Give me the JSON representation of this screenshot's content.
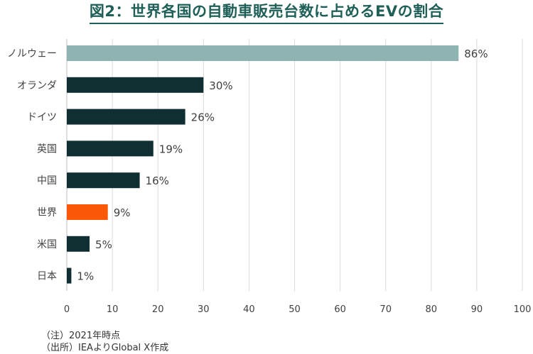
{
  "title": "図2：世界各国の自動車販売台数に占めるEVの割合",
  "notes": {
    "line1": "（注）2021年時点",
    "line2": "（出所）IEAよりGlobal X作成"
  },
  "chart_data": {
    "type": "bar",
    "orientation": "horizontal",
    "categories": [
      "ノルウェー",
      "オランダ",
      "ドイツ",
      "英国",
      "中国",
      "世界",
      "米国",
      "日本"
    ],
    "values": [
      86,
      30,
      26,
      19,
      16,
      9,
      5,
      1
    ],
    "value_labels": [
      "86%",
      "30%",
      "26%",
      "19%",
      "16%",
      "9%",
      "5%",
      "1%"
    ],
    "xlim": [
      0,
      100
    ],
    "xticks": [
      "0",
      "10",
      "20",
      "30",
      "40",
      "50",
      "60",
      "70",
      "80",
      "90",
      "100"
    ],
    "grid": "vertical",
    "colors": {
      "default": "#0f2f33",
      "highlight_top": "#8fb3b0",
      "highlight_world": "#fb5708",
      "grid": "#d9d9d9",
      "axis": "#bfbfbf",
      "label": "#404040",
      "title": "#1e5f57"
    },
    "bar_colors": [
      "#8fb3b0",
      "#0f2f33",
      "#0f2f33",
      "#0f2f33",
      "#0f2f33",
      "#fb5708",
      "#0f2f33",
      "#0f2f33"
    ]
  }
}
